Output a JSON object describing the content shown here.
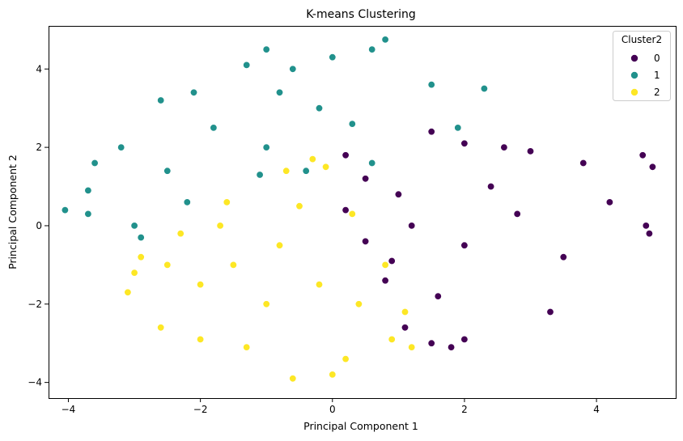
{
  "chart_data": {
    "type": "scatter",
    "title": "K-means Clustering",
    "xlabel": "Principal Component 1",
    "ylabel": "Principal Component 2",
    "xlim": [
      -4.3,
      5.2
    ],
    "ylim": [
      -4.4,
      5.1
    ],
    "xticks": [
      -4,
      -2,
      0,
      2,
      4
    ],
    "yticks": [
      -4,
      -2,
      0,
      2,
      4
    ],
    "xtick_labels": [
      "−4",
      "−2",
      "0",
      "2",
      "4"
    ],
    "ytick_labels": [
      "−4",
      "−2",
      "0",
      "2",
      "4"
    ],
    "grid": false,
    "legend": {
      "title": "Cluster2",
      "position": "top-right",
      "entries": [
        "0",
        "1",
        "2"
      ]
    },
    "series": [
      {
        "name": "0",
        "color": "#440154",
        "approx_center": [
          1.9,
          0.0
        ],
        "approx_x_range": [
          0.0,
          4.85
        ],
        "approx_y_range": [
          -3.1,
          2.5
        ],
        "points": [
          [
            0.2,
            1.8
          ],
          [
            0.5,
            1.2
          ],
          [
            1.0,
            0.8
          ],
          [
            1.5,
            2.4
          ],
          [
            2.0,
            2.1
          ],
          [
            2.6,
            2.0
          ],
          [
            3.0,
            1.9
          ],
          [
            3.8,
            1.6
          ],
          [
            4.7,
            1.8
          ],
          [
            4.85,
            1.5
          ],
          [
            4.75,
            0.0
          ],
          [
            4.8,
            -0.2
          ],
          [
            3.3,
            -2.2
          ],
          [
            2.0,
            -2.9
          ],
          [
            1.8,
            -3.1
          ],
          [
            1.5,
            -3.0
          ],
          [
            1.1,
            -2.6
          ],
          [
            0.8,
            -1.4
          ],
          [
            0.5,
            -0.4
          ],
          [
            0.2,
            0.4
          ],
          [
            1.2,
            0.0
          ],
          [
            2.0,
            -0.5
          ],
          [
            2.8,
            0.3
          ],
          [
            3.5,
            -0.8
          ],
          [
            4.2,
            0.6
          ],
          [
            1.6,
            -1.8
          ],
          [
            2.4,
            1.0
          ],
          [
            0.9,
            -0.9
          ]
        ]
      },
      {
        "name": "1",
        "color": "#21918c",
        "approx_center": [
          -1.3,
          1.9
        ],
        "approx_x_range": [
          -4.05,
          2.3
        ],
        "approx_y_range": [
          -0.4,
          4.75
        ],
        "points": [
          [
            -4.05,
            0.4
          ],
          [
            -3.7,
            0.9
          ],
          [
            -3.6,
            1.6
          ],
          [
            -3.2,
            2.0
          ],
          [
            -2.6,
            3.2
          ],
          [
            -2.1,
            3.4
          ],
          [
            -1.3,
            4.1
          ],
          [
            -1.0,
            4.5
          ],
          [
            -0.6,
            4.0
          ],
          [
            0.0,
            4.3
          ],
          [
            0.8,
            4.75
          ],
          [
            0.6,
            4.5
          ],
          [
            1.5,
            3.6
          ],
          [
            2.3,
            3.5
          ],
          [
            1.9,
            2.5
          ],
          [
            0.6,
            1.6
          ],
          [
            -0.4,
            1.4
          ],
          [
            -1.1,
            1.3
          ],
          [
            -2.2,
            0.6
          ],
          [
            -3.0,
            0.0
          ],
          [
            -2.9,
            -0.3
          ],
          [
            -3.7,
            0.3
          ],
          [
            -1.8,
            2.5
          ],
          [
            -1.0,
            2.0
          ],
          [
            -0.2,
            3.0
          ],
          [
            -2.5,
            1.4
          ],
          [
            -0.8,
            3.4
          ],
          [
            0.3,
            2.6
          ]
        ]
      },
      {
        "name": "2",
        "color": "#fde725",
        "approx_center": [
          -1.1,
          -1.0
        ],
        "approx_x_range": [
          -3.1,
          1.2
        ],
        "approx_y_range": [
          -3.9,
          1.7
        ],
        "points": [
          [
            -3.1,
            -1.7
          ],
          [
            -2.9,
            -0.8
          ],
          [
            -2.3,
            -0.2
          ],
          [
            -1.6,
            0.6
          ],
          [
            -0.7,
            1.4
          ],
          [
            -0.3,
            1.7
          ],
          [
            -0.1,
            1.5
          ],
          [
            0.3,
            0.3
          ],
          [
            0.8,
            -1.0
          ],
          [
            1.1,
            -2.2
          ],
          [
            1.2,
            -3.1
          ],
          [
            0.9,
            -2.9
          ],
          [
            0.2,
            -3.4
          ],
          [
            0.0,
            -3.8
          ],
          [
            -0.6,
            -3.9
          ],
          [
            -1.3,
            -3.1
          ],
          [
            -2.0,
            -2.9
          ],
          [
            -2.6,
            -2.6
          ],
          [
            -3.0,
            -1.2
          ],
          [
            -1.5,
            -1.0
          ],
          [
            -0.8,
            -0.5
          ],
          [
            -0.2,
            -1.5
          ],
          [
            -2.0,
            -1.5
          ],
          [
            -1.0,
            -2.0
          ],
          [
            0.4,
            -2.0
          ],
          [
            -2.5,
            -1.0
          ],
          [
            -1.7,
            0.0
          ],
          [
            -0.5,
            0.5
          ]
        ]
      }
    ]
  }
}
